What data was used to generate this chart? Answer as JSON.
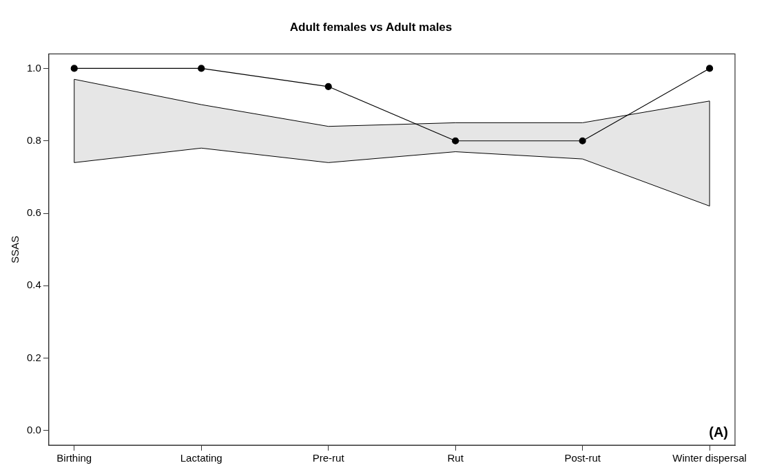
{
  "chart_data": {
    "type": "line",
    "title": "Adult females vs Adult males",
    "ylabel": "SSAS",
    "categories": [
      "Birthing",
      "Lactating",
      "Pre-rut",
      "Rut",
      "Post-rut",
      "Winter dispersal"
    ],
    "series": [
      {
        "color": "#000000",
        "values": [
          1.0,
          1.0,
          0.95,
          0.8,
          0.8,
          1.0
        ],
        "lower": [
          0.74,
          0.78,
          0.74,
          0.77,
          0.75,
          0.62
        ],
        "upper": [
          0.97,
          0.9,
          0.84,
          0.85,
          0.85,
          0.91
        ]
      }
    ],
    "ylim": [
      -0.04,
      1.04
    ],
    "yticks": [
      {
        "value": 0,
        "label": "0.0"
      },
      {
        "value": 0.2,
        "label": "0.2"
      },
      {
        "value": 0.4,
        "label": "0.4"
      },
      {
        "value": 0.6,
        "label": "0.6"
      },
      {
        "value": 0.8,
        "label": "0.8"
      },
      {
        "value": 1,
        "label": "1.0"
      }
    ],
    "grid": false,
    "legend": false,
    "marker": "circle",
    "line_style": "solid",
    "annotations": [
      "(A)"
    ]
  }
}
